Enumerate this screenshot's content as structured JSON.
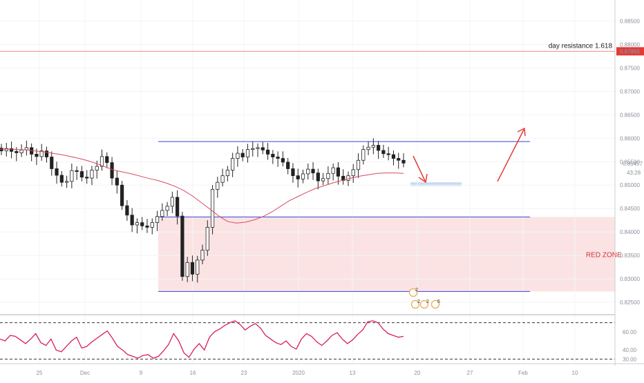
{
  "chart_data": [
    {
      "type": "candlestick",
      "title": "",
      "price_axis": {
        "ticks": [
          "0.88500",
          "0.88000",
          "0.87500",
          "0.87000",
          "0.86500",
          "0.86000",
          "0.85500",
          "0.85000",
          "0.84500",
          "0.84000",
          "0.83500",
          "0.83000",
          "0.82500"
        ],
        "range": [
          0.8225,
          0.8895
        ],
        "last_price_label": "0.85457",
        "countdown_label": "43:28",
        "marked_level_label": "0.87855"
      },
      "time_axis": {
        "labels": [
          "25",
          "Dec",
          "9",
          "16",
          "23",
          "2020",
          "13",
          "20",
          "27",
          "Feb",
          "10"
        ]
      },
      "levels": [
        {
          "value": 0.87855,
          "color": "#f28b82",
          "label": "day resistance 1.618"
        },
        {
          "value": 0.8593,
          "color": "#3244d6"
        },
        {
          "value": 0.8432,
          "color": "#3244d6"
        },
        {
          "value": 0.8273,
          "color": "#3244d6"
        }
      ],
      "zones": [
        {
          "label": "RED ZONE",
          "from": 0.8273,
          "to": 0.8432,
          "color": "#fbe3e4",
          "text_color": "#d32f2f"
        },
        {
          "from": 0.8498,
          "to": 0.8506,
          "color": "#c9daf3"
        }
      ],
      "series": [
        {
          "name": "",
          "kind": "candles",
          "values_close": [
            0.8573,
            0.8578,
            0.8572,
            0.8569,
            0.8575,
            0.858,
            0.8566,
            0.8561,
            0.8573,
            0.856,
            0.8535,
            0.8521,
            0.8506,
            0.8508,
            0.8531,
            0.8529,
            0.8517,
            0.8515,
            0.8532,
            0.854,
            0.8561,
            0.8548,
            0.8515,
            0.85,
            0.8456,
            0.8436,
            0.8415,
            0.842,
            0.8413,
            0.841,
            0.842,
            0.8433,
            0.8446,
            0.8455,
            0.8474,
            0.8434,
            0.8305,
            0.8335,
            0.831,
            0.834,
            0.8361,
            0.841,
            0.8491,
            0.8506,
            0.852,
            0.8532,
            0.8557,
            0.8568,
            0.856,
            0.8576,
            0.8578,
            0.858,
            0.8575,
            0.8566,
            0.856,
            0.8557,
            0.8549,
            0.8535,
            0.852,
            0.8513,
            0.8524,
            0.8534,
            0.8526,
            0.8509,
            0.8514,
            0.8525,
            0.8537,
            0.8519,
            0.851,
            0.852,
            0.8533,
            0.8553,
            0.8576,
            0.8581,
            0.8585,
            0.8574,
            0.8567,
            0.8565,
            0.8557,
            0.8553,
            0.8547
          ]
        },
        {
          "name": "",
          "kind": "moving_average",
          "color": "#d9485f",
          "values": [
            0.8577,
            0.8577,
            0.8576,
            0.8575,
            0.8573,
            0.8571,
            0.8568,
            0.8565,
            0.8561,
            0.8557,
            0.8552,
            0.8546,
            0.8539,
            0.8532,
            0.8528,
            0.8524,
            0.8519,
            0.8514,
            0.851,
            0.8504,
            0.8497,
            0.8488,
            0.8476,
            0.8462,
            0.8448,
            0.8433,
            0.8422,
            0.8419,
            0.8421,
            0.8426,
            0.8433,
            0.8443,
            0.8455,
            0.8467,
            0.8476,
            0.8485,
            0.8493,
            0.8499,
            0.8505,
            0.851,
            0.8515,
            0.8519,
            0.8522,
            0.8525,
            0.8526,
            0.8526,
            0.8525
          ]
        }
      ],
      "annotations": [
        {
          "kind": "arrow",
          "color": "#e53935",
          "direction": "down"
        },
        {
          "kind": "arrow",
          "color": "#e53935",
          "direction": "up"
        },
        {
          "kind": "event_markers",
          "labels": [
            "2",
            "2",
            "2",
            "5"
          ]
        }
      ]
    },
    {
      "type": "line",
      "title": "",
      "yaxis": {
        "ticks": [
          "60.00",
          "40.00",
          "30.00"
        ],
        "range": [
          25,
          78
        ],
        "levels": [
          70,
          30
        ]
      },
      "series": [
        {
          "name": "",
          "color": "#d81b60",
          "values": [
            52,
            50,
            56,
            55,
            51,
            47,
            52,
            58,
            48,
            45,
            52,
            40,
            38,
            44,
            50,
            54,
            42,
            44,
            49,
            53,
            57,
            61,
            53,
            44,
            40,
            35,
            33,
            31,
            34,
            35,
            31,
            33,
            39,
            46,
            58,
            50,
            37,
            32,
            41,
            47,
            40,
            54,
            60,
            63,
            67,
            70,
            72,
            68,
            62,
            66,
            69,
            64,
            56,
            52,
            48,
            46,
            50,
            44,
            41,
            52,
            58,
            55,
            49,
            45,
            50,
            56,
            59,
            52,
            47,
            51,
            57,
            62,
            71,
            72,
            70,
            63,
            58,
            56,
            54,
            55
          ]
        }
      ]
    }
  ]
}
